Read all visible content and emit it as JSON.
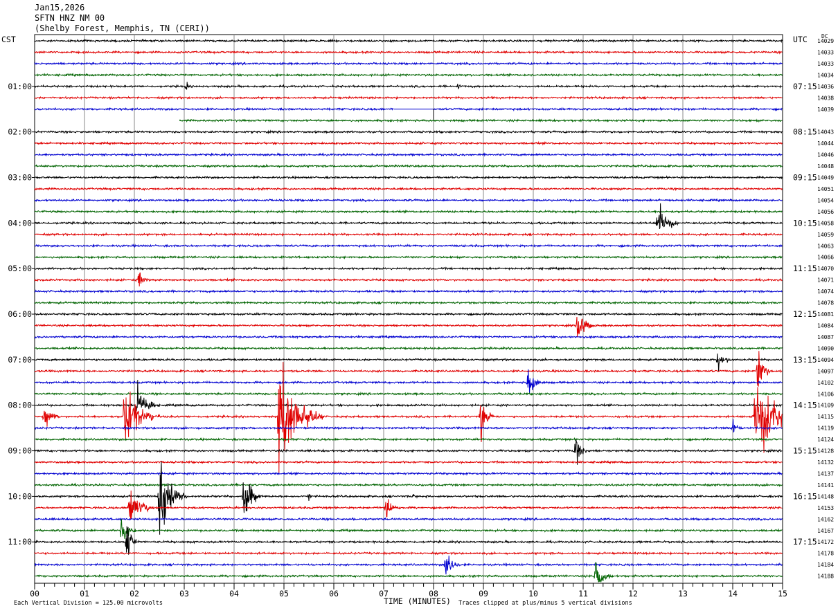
{
  "header": {
    "date": "Jan15,2026",
    "station": "SFTN HNZ NM 00",
    "location": "(Shelby Forest, Memphis, TN (CERI))"
  },
  "left_zone_label": "CST",
  "right_zone_label": "UTC",
  "dc_label": "DC",
  "chart_data": {
    "type": "line",
    "title": "",
    "xlabel": "TIME (MINUTES)",
    "xlim": [
      0,
      15
    ],
    "x_ticks": [
      "00",
      "01",
      "02",
      "03",
      "04",
      "05",
      "06",
      "07",
      "08",
      "09",
      "10",
      "11",
      "12",
      "13",
      "14",
      "15"
    ],
    "trace_interval_minutes": 15,
    "trace_count": 48,
    "trace_color_cycle": [
      "#000000",
      "#e00000",
      "#0000d0",
      "#006400"
    ],
    "left_hour_labels": [
      "01:00",
      "02:00",
      "03:00",
      "04:00",
      "05:00",
      "06:00",
      "07:00",
      "08:00",
      "09:00",
      "10:00",
      "11:00"
    ],
    "right_hour_labels": [
      "07:15",
      "08:15",
      "09:15",
      "10:15",
      "11:15",
      "12:15",
      "13:15",
      "14:15",
      "15:15",
      "16:15",
      "17:15"
    ],
    "dc_offsets": [
      "14029",
      "14033",
      "14033",
      "14034",
      "14036",
      "14038",
      "14039",
      "",
      "14043",
      "14044",
      "14046",
      "14048",
      "14049",
      "14051",
      "14054",
      "14056",
      "14058",
      "14059",
      "14063",
      "14066",
      "14070",
      "14071",
      "14074",
      "14078",
      "14081",
      "14084",
      "14087",
      "14090",
      "14094",
      "14097",
      "14102",
      "14106",
      "14109",
      "14115",
      "14119",
      "14124",
      "14128",
      "14132",
      "14137",
      "14141",
      "14148",
      "14153",
      "14162",
      "14167",
      "14172",
      "14178",
      "14184",
      "14188"
    ],
    "gaps": [
      {
        "trace": 6,
        "start_min": 7.2,
        "end_min": 8.0
      },
      {
        "trace": 7,
        "start_min": 0,
        "end_min": 2.9
      }
    ],
    "events": [
      {
        "trace": 4,
        "minute": 3.05,
        "amp": 0.6,
        "dur": 0.05
      },
      {
        "trace": 4,
        "minute": 8.5,
        "amp": 0.3,
        "dur": 0.1
      },
      {
        "trace": 16,
        "minute": 12.5,
        "amp": 2.6,
        "dur": 0.4
      },
      {
        "trace": 21,
        "minute": 2.1,
        "amp": 1.0,
        "dur": 0.2
      },
      {
        "trace": 25,
        "minute": 10.9,
        "amp": 2.0,
        "dur": 0.35
      },
      {
        "trace": 28,
        "minute": 13.7,
        "amp": 1.0,
        "dur": 0.35
      },
      {
        "trace": 29,
        "minute": 14.5,
        "amp": 3.0,
        "dur": 0.25
      },
      {
        "trace": 30,
        "minute": 9.9,
        "amp": 1.8,
        "dur": 0.3
      },
      {
        "trace": 32,
        "minute": 2.05,
        "amp": 2.2,
        "dur": 0.45
      },
      {
        "trace": 33,
        "minute": 0.2,
        "amp": 1.3,
        "dur": 0.3
      },
      {
        "trace": 33,
        "minute": 1.8,
        "amp": 3.5,
        "dur": 0.7
      },
      {
        "trace": 33,
        "minute": 4.9,
        "amp": 5.0,
        "dur": 0.9
      },
      {
        "trace": 33,
        "minute": 8.95,
        "amp": 2.5,
        "dur": 0.3
      },
      {
        "trace": 33,
        "minute": 14.45,
        "amp": 5.0,
        "dur": 0.9
      },
      {
        "trace": 34,
        "minute": 14.0,
        "amp": 1.0,
        "dur": 0.2
      },
      {
        "trace": 36,
        "minute": 10.85,
        "amp": 1.4,
        "dur": 0.3
      },
      {
        "trace": 40,
        "minute": 2.5,
        "amp": 4.5,
        "dur": 0.55
      },
      {
        "trace": 40,
        "minute": 4.2,
        "amp": 2.8,
        "dur": 0.35
      },
      {
        "trace": 40,
        "minute": 5.5,
        "amp": 0.5,
        "dur": 0.05
      },
      {
        "trace": 40,
        "minute": 7.6,
        "amp": 0.4,
        "dur": 0.05
      },
      {
        "trace": 41,
        "minute": 1.9,
        "amp": 2.2,
        "dur": 0.5
      },
      {
        "trace": 41,
        "minute": 7.05,
        "amp": 1.4,
        "dur": 0.3
      },
      {
        "trace": 42,
        "minute": 6.4,
        "amp": 0.3,
        "dur": 0.05
      },
      {
        "trace": 43,
        "minute": 1.75,
        "amp": 1.8,
        "dur": 0.3
      },
      {
        "trace": 44,
        "minute": 1.85,
        "amp": 2.6,
        "dur": 0.2
      },
      {
        "trace": 46,
        "minute": 8.25,
        "amp": 2.0,
        "dur": 0.3
      },
      {
        "trace": 47,
        "minute": 11.25,
        "amp": 2.2,
        "dur": 0.35
      }
    ]
  },
  "footer": {
    "scale_note": "Each Vertical Division =  125.00 microvolts",
    "clip_note": "Traces clipped at plus/minus 5 vertical divisions"
  }
}
